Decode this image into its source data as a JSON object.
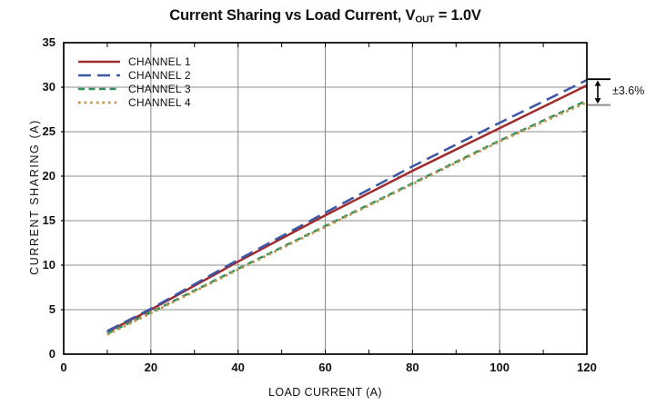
{
  "title": {
    "prefix": "Current Sharing vs Load Current, V",
    "subscript": "OUT",
    "suffix": " = 1.0V"
  },
  "colors": {
    "channel1": "#9F2B2D",
    "channel2": "#3B57A6",
    "channel3": "#30915C",
    "channel4": "#C3924E",
    "grid": "#8C8C8C",
    "axis": "#000000",
    "annotation_bottom_line": "#8F8F8F"
  },
  "chart_data": {
    "type": "line",
    "title": "Current Sharing vs Load Current, VOUT = 1.0V",
    "xlabel": "LOAD CURRENT (A)",
    "ylabel": "CURRENT SHARING (A)",
    "xlim": [
      0,
      120
    ],
    "ylim": [
      0,
      35
    ],
    "xticks": [
      0,
      20,
      40,
      60,
      80,
      100,
      120
    ],
    "yticks": [
      0,
      5,
      10,
      15,
      20,
      25,
      30,
      35
    ],
    "grid": true,
    "legend_position": "top-left",
    "x": [
      10,
      20,
      40,
      60,
      80,
      100,
      120
    ],
    "series": [
      {
        "name": "CHANNEL 1",
        "color": "#9F2B2D",
        "style": "solid",
        "values": [
          2.5,
          5.0,
          10.4,
          15.6,
          20.6,
          25.4,
          30.2
        ]
      },
      {
        "name": "CHANNEL 2",
        "color": "#3B57A6",
        "style": "long-dash",
        "values": [
          2.6,
          5.1,
          10.6,
          15.9,
          21.1,
          26.0,
          30.8
        ]
      },
      {
        "name": "CHANNEL 3",
        "color": "#30915C",
        "style": "dash",
        "values": [
          2.3,
          4.7,
          9.6,
          14.4,
          19.2,
          24.0,
          28.5
        ]
      },
      {
        "name": "CHANNEL 4",
        "color": "#C3924E",
        "style": "dot",
        "values": [
          2.2,
          4.6,
          9.5,
          14.3,
          19.1,
          23.9,
          28.3
        ]
      }
    ],
    "annotation": {
      "label": "±3.6%",
      "x_value": 120,
      "top_value": 30.9,
      "bottom_value": 28.0
    }
  }
}
